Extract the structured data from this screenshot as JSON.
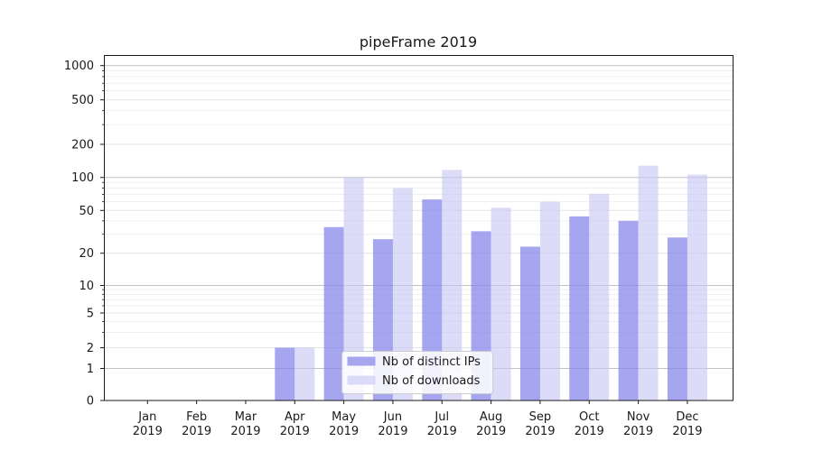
{
  "title": "pipeFrame 2019",
  "colors": {
    "ips_bar": "rgba(132,132,234,0.72)",
    "downloads_bar": "rgba(196,196,245,0.60)",
    "decade_grid": "#c2c2c2",
    "labeled_grid": "#e4e4e4",
    "minor_grid": "#efefef",
    "axis": "#1a1a1a",
    "text": "#1a1a1a",
    "legend_border": "#cccccc",
    "legend_bg": "rgba(255,255,255,0.85)"
  },
  "legend": {
    "items": [
      {
        "label": "Nb of distinct IPs",
        "color_key": "ips_bar"
      },
      {
        "label": "Nb of downloads",
        "color_key": "downloads_bar"
      }
    ]
  },
  "chart_data": {
    "type": "bar",
    "title": "pipeFrame 2019",
    "categories": [
      "Jan 2019",
      "Feb 2019",
      "Mar 2019",
      "Apr 2019",
      "May 2019",
      "Jun 2019",
      "Jul 2019",
      "Aug 2019",
      "Sep 2019",
      "Oct 2019",
      "Nov 2019",
      "Dec 2019"
    ],
    "x_tick_labels": [
      {
        "month": "Jan",
        "year": "2019"
      },
      {
        "month": "Feb",
        "year": "2019"
      },
      {
        "month": "Mar",
        "year": "2019"
      },
      {
        "month": "Apr",
        "year": "2019"
      },
      {
        "month": "May",
        "year": "2019"
      },
      {
        "month": "Jun",
        "year": "2019"
      },
      {
        "month": "Jul",
        "year": "2019"
      },
      {
        "month": "Aug",
        "year": "2019"
      },
      {
        "month": "Sep",
        "year": "2019"
      },
      {
        "month": "Oct",
        "year": "2019"
      },
      {
        "month": "Nov",
        "year": "2019"
      },
      {
        "month": "Dec",
        "year": "2019"
      }
    ],
    "series": [
      {
        "name": "Nb of distinct IPs",
        "values": [
          0,
          0,
          0,
          2,
          35,
          27,
          63,
          32,
          23,
          44,
          40,
          28
        ]
      },
      {
        "name": "Nb of downloads",
        "values": [
          0,
          0,
          0,
          2,
          100,
          80,
          117,
          53,
          60,
          71,
          128,
          106
        ]
      }
    ],
    "yscale": "symlog (linear 0-1, logarithmic above)",
    "y_ticks": [
      1000,
      500,
      200,
      100,
      50,
      20,
      10,
      5,
      2,
      1,
      0
    ],
    "y_decade_gridlines": [
      1,
      10,
      100,
      1000
    ],
    "y_minor_gridlines": [
      3,
      4,
      6,
      7,
      8,
      9,
      30,
      40,
      60,
      70,
      80,
      90,
      300,
      400,
      600,
      700,
      800,
      900
    ],
    "ylim": [
      0,
      1200
    ],
    "grid": true,
    "legend_position": "inside lower-center",
    "xlabel": "",
    "ylabel": ""
  }
}
